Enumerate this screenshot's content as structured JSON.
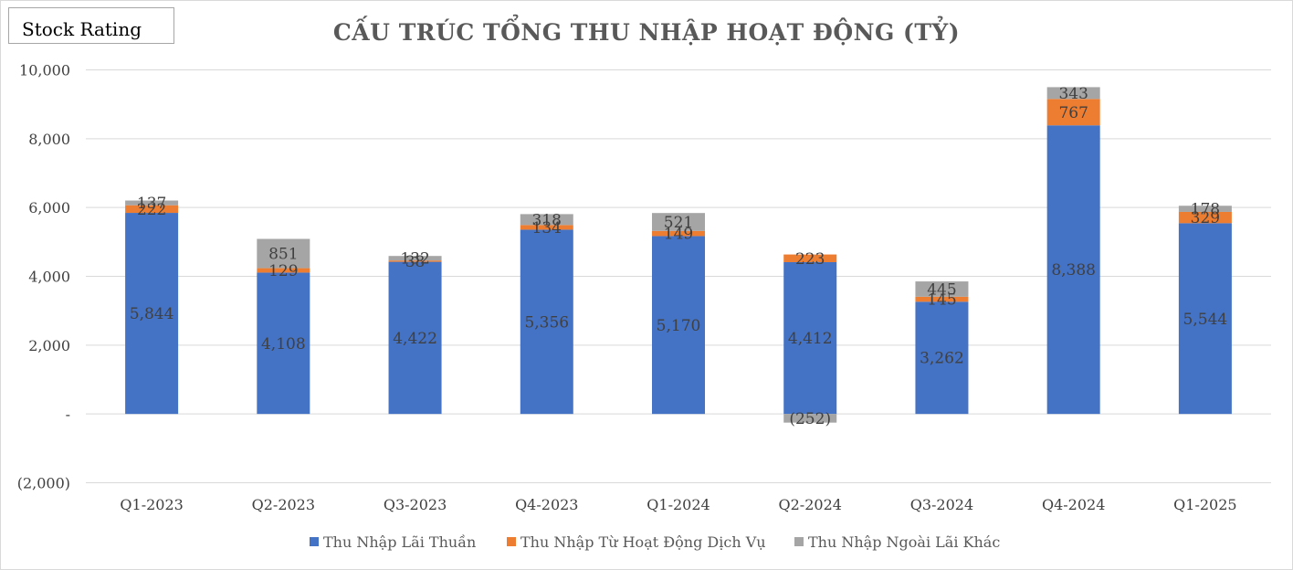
{
  "brand_label": "Stock Rating",
  "chart_data": {
    "type": "bar",
    "stacked": true,
    "title": "CẤU TRÚC TỔNG THU NHẬP HOẠT ĐỘNG (TỶ)",
    "categories": [
      "Q1-2023",
      "Q2-2023",
      "Q3-2023",
      "Q4-2023",
      "Q1-2024",
      "Q2-2024",
      "Q3-2024",
      "Q4-2024",
      "Q1-2025"
    ],
    "series": [
      {
        "name": "Thu Nhập Lãi Thuần",
        "color": "#4472c4",
        "values": [
          5844,
          4108,
          4422,
          5356,
          5170,
          4412,
          3262,
          8388,
          5544
        ],
        "labels": [
          "5,844",
          "4,108",
          "4,422",
          "5,356",
          "5,170",
          "4,412",
          "3,262",
          "8,388",
          "5,544"
        ]
      },
      {
        "name": "Thu Nhập Từ Hoạt Động Dịch Vụ",
        "color": "#ed7d31",
        "values": [
          222,
          129,
          38,
          134,
          149,
          223,
          145,
          767,
          329
        ],
        "labels": [
          "222",
          "129",
          "38",
          "134",
          "149",
          "223",
          "145",
          "767",
          "329"
        ]
      },
      {
        "name": "Thu Nhập Ngoài Lãi Khác",
        "color": "#a5a5a5",
        "values": [
          137,
          851,
          132,
          318,
          521,
          -252,
          445,
          343,
          178
        ],
        "labels": [
          "137",
          "851",
          "132",
          "318",
          "521",
          "(252)",
          "445",
          "343",
          "178"
        ]
      }
    ],
    "yticks": [
      {
        "value": 10000,
        "label": "10,000"
      },
      {
        "value": 8000,
        "label": "8,000"
      },
      {
        "value": 6000,
        "label": "6,000"
      },
      {
        "value": 4000,
        "label": "4,000"
      },
      {
        "value": 2000,
        "label": "2,000"
      },
      {
        "value": 0,
        "label": "-"
      },
      {
        "value": -2000,
        "label": "(2,000)"
      }
    ],
    "ylim": [
      -2000,
      10000
    ],
    "grid": true,
    "legend_position": "bottom"
  }
}
